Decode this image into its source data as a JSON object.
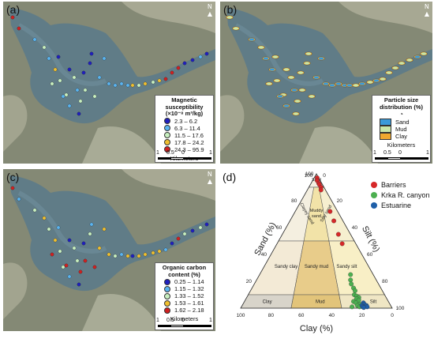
{
  "panels": {
    "a": {
      "label": "(a)",
      "legend_title_line1": "Magnetic",
      "legend_title_line2": "susceptibility",
      "legend_title_line3": "(×10⁻⁸ m³/kg)",
      "classes": [
        {
          "label": "2.3 – 6.2",
          "color": "#1f1fbf"
        },
        {
          "label": "6.3 – 11.4",
          "color": "#5ab4f0"
        },
        {
          "label": "11.5 – 17.6",
          "color": "#c8f0c0"
        },
        {
          "label": "17.8 – 24.2",
          "color": "#f0c030"
        },
        {
          "label": "24.3 – 95.9",
          "color": "#d02020"
        }
      ],
      "km_label": "Kilometers",
      "scale": [
        "1",
        "0.5",
        "0",
        "1"
      ]
    },
    "b": {
      "label": "(b)",
      "legend_title_line1": "Particle size",
      "legend_title_line2": "distribution (%)",
      "classes": [
        {
          "label": "Sand",
          "color": "#3a9ad9"
        },
        {
          "label": "Mud",
          "color": "#c8e6a8"
        },
        {
          "label": "Clay",
          "color": "#f0a830"
        }
      ],
      "km_label": "Kilometers",
      "scale": [
        "1",
        "0.5",
        "0",
        "1"
      ]
    },
    "c": {
      "label": "(c)",
      "legend_title_line1": "Organic carbon",
      "legend_title_line2": "content (%)",
      "classes": [
        {
          "label": "0.25 – 1.14",
          "color": "#1f1fbf"
        },
        {
          "label": "1.15 – 1.32",
          "color": "#5ab4f0"
        },
        {
          "label": "1.33 – 1.52",
          "color": "#c8f0c0"
        },
        {
          "label": "1.53 – 1.61",
          "color": "#f0c030"
        },
        {
          "label": "1.62 – 2.18",
          "color": "#d02020"
        }
      ],
      "km_label": "Kilometers",
      "scale": [
        "1",
        "0.5",
        "0",
        "1"
      ]
    },
    "d": {
      "label": "(d)",
      "north": "N"
    }
  },
  "chart_data": {
    "type": "scatter",
    "subtype": "ternary",
    "axis_sand": "Sand (%)",
    "axis_silt": "Silt (%)",
    "axis_clay": "Clay (%)",
    "ticks": [
      "0",
      "20",
      "40",
      "60",
      "80",
      "100"
    ],
    "tick_sand": [
      "100",
      "80",
      "60",
      "40",
      "20",
      "0"
    ],
    "fields": {
      "sand": "Sand",
      "clayey_sand": "Clayey sand",
      "muddy_sand": "Muddy sand",
      "silty_sand": "Silty sand",
      "sandy_clay": "Sandy clay",
      "sandy_mud": "Sandy mud",
      "sandy_silt": "Sandy silt",
      "clay": "Clay",
      "mud": "Mud",
      "silt": "Silt"
    },
    "series": [
      {
        "name": "Barriers",
        "color": "#d62728",
        "points": [
          [
            97,
            2,
            1
          ],
          [
            95,
            3,
            2
          ],
          [
            93,
            5,
            2
          ],
          [
            92,
            6,
            2
          ],
          [
            90,
            8,
            2
          ],
          [
            88,
            9,
            3
          ],
          [
            72,
            23,
            5
          ],
          [
            65,
            29,
            6
          ],
          [
            55,
            37,
            8
          ],
          [
            48,
            43,
            9
          ]
        ]
      },
      {
        "name": "Krka R. canyon",
        "color": "#4caf50",
        "points": [
          [
            25,
            60,
            15
          ],
          [
            21,
            62,
            17
          ],
          [
            18,
            64,
            18
          ],
          [
            15,
            67,
            18
          ],
          [
            13,
            69,
            18
          ],
          [
            10,
            70,
            20
          ],
          [
            9,
            72,
            19
          ],
          [
            8,
            74,
            18
          ],
          [
            7,
            73,
            20
          ],
          [
            6,
            75,
            19
          ],
          [
            5,
            72,
            23
          ],
          [
            4,
            74,
            22
          ],
          [
            3,
            77,
            20
          ],
          [
            2,
            76,
            22
          ],
          [
            1,
            78,
            21
          ],
          [
            1,
            73,
            26
          ]
        ]
      },
      {
        "name": "Estuarine",
        "color": "#1f5fa8",
        "points": [
          [
            4,
            79,
            17
          ],
          [
            3,
            80,
            17
          ],
          [
            2,
            82,
            16
          ],
          [
            2,
            79,
            19
          ],
          [
            1,
            80,
            19
          ],
          [
            1,
            83,
            16
          ],
          [
            0.5,
            81,
            18.5
          ]
        ]
      }
    ]
  }
}
